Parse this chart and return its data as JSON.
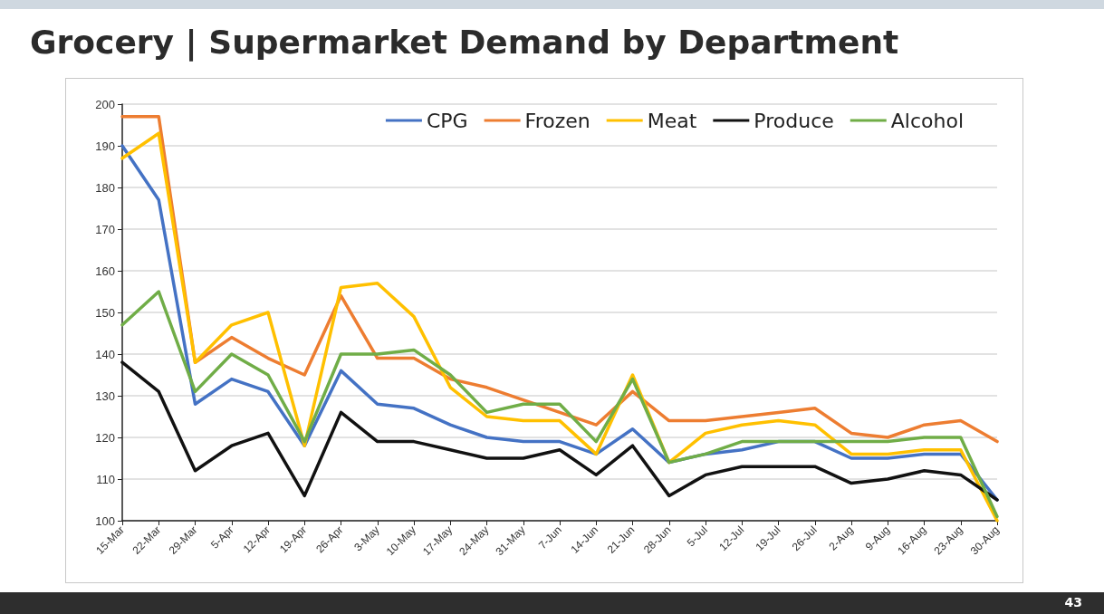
{
  "chart_data": {
    "type": "line",
    "title": "Grocery | Supermarket Demand by Department",
    "categories": [
      "15-Mar",
      "22-Mar",
      "29-Mar",
      "5-Apr",
      "12-Apr",
      "19-Apr",
      "26-Apr",
      "3-May",
      "10-May",
      "17-May",
      "24-May",
      "31-May",
      "7-Jun",
      "14-Jun",
      "21-Jun",
      "28-Jun",
      "5-Jul",
      "12-Jul",
      "19-Jul",
      "26-Jul",
      "2-Aug",
      "9-Aug",
      "16-Aug",
      "23-Aug",
      "30-Aug"
    ],
    "series": [
      {
        "name": "CPG",
        "color": "#4472c4",
        "values": [
          190,
          177,
          128,
          134,
          131,
          118,
          136,
          128,
          127,
          123,
          120,
          119,
          119,
          116,
          122,
          114,
          116,
          117,
          119,
          119,
          115,
          115,
          116,
          116,
          105
        ]
      },
      {
        "name": "Frozen",
        "color": "#ed7d31",
        "values": [
          197,
          197,
          138,
          144,
          139,
          135,
          154,
          139,
          139,
          134,
          132,
          129,
          126,
          123,
          131,
          124,
          124,
          125,
          126,
          127,
          121,
          120,
          123,
          124,
          119
        ]
      },
      {
        "name": "Meat",
        "color": "#ffc000",
        "values": [
          187,
          193,
          138,
          147,
          150,
          118,
          156,
          157,
          149,
          132,
          125,
          124,
          124,
          116,
          135,
          114,
          121,
          123,
          124,
          123,
          116,
          116,
          117,
          117,
          100
        ]
      },
      {
        "name": "Produce",
        "color": "#111111",
        "values": [
          138,
          131,
          112,
          118,
          121,
          106,
          126,
          119,
          119,
          117,
          115,
          115,
          117,
          111,
          118,
          106,
          111,
          113,
          113,
          113,
          109,
          110,
          112,
          111,
          105
        ]
      },
      {
        "name": "Alcohol",
        "color": "#70ad47",
        "values": [
          147,
          155,
          131,
          140,
          135,
          119,
          140,
          140,
          141,
          135,
          126,
          128,
          128,
          119,
          134,
          114,
          116,
          119,
          119,
          119,
          119,
          119,
          120,
          120,
          101
        ]
      }
    ],
    "ylim": [
      100,
      200
    ],
    "yticks": [
      100,
      110,
      120,
      130,
      140,
      150,
      160,
      170,
      180,
      190,
      200
    ],
    "grid": "y",
    "legend": "top right",
    "marker": "none",
    "line_style": "solid",
    "annotations": [
      "43"
    ]
  }
}
